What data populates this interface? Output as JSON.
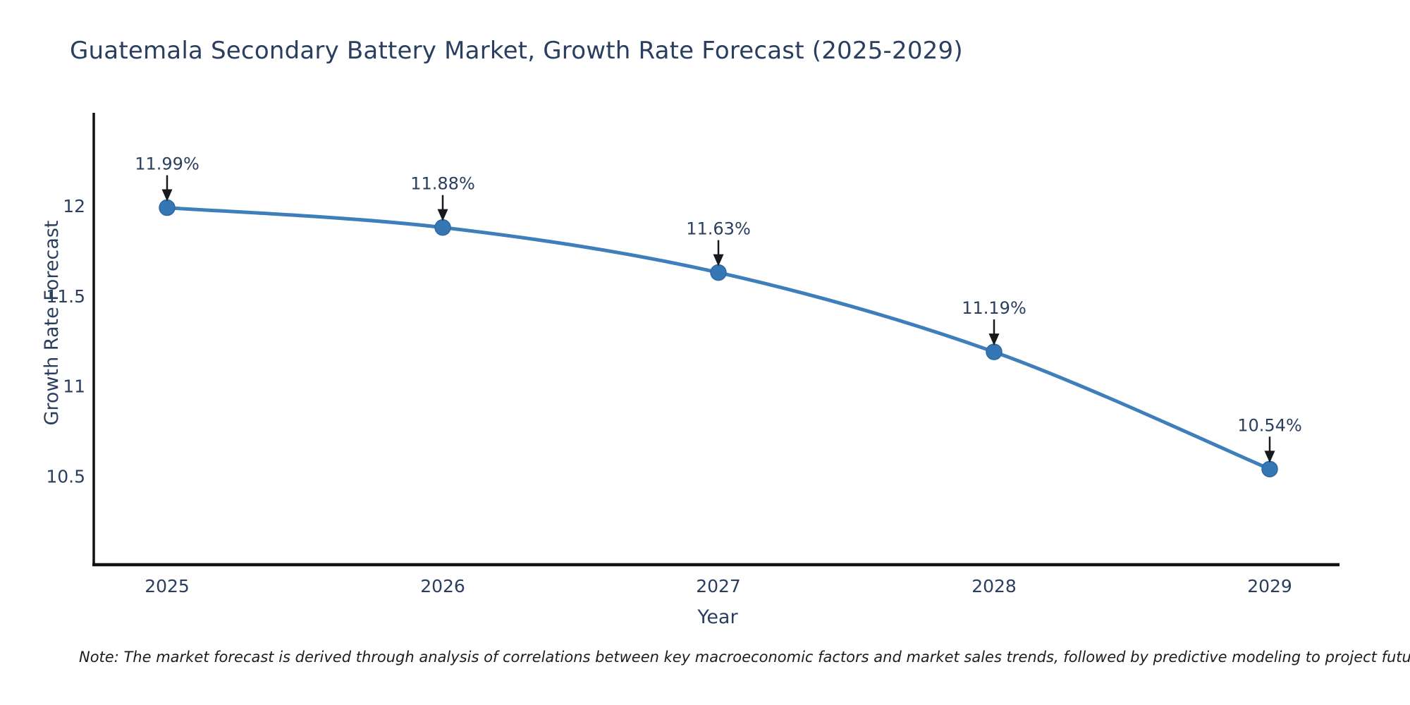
{
  "title": {
    "text": "Guatemala Secondary Battery Market, Growth Rate Forecast (2025-2029)"
  },
  "note": {
    "text": "Note: The market forecast is derived through analysis of correlations between key macroeconomic factors and market sales trends, followed by predictive modeling to project future sal"
  },
  "colors": {
    "background": "#ffffff",
    "title_text": "#2a3f5f",
    "axis_text": "#2a3f5f",
    "tick_text": "#2a3f5f",
    "annotation_text": "#2a3f5f",
    "line": "#3e7fbb",
    "marker": "#3577b4",
    "marker_edge": "#2d68a0",
    "axis_line": "#111111",
    "arrow": "#16191d",
    "note_text": "#1d1d1b"
  },
  "chart_data": {
    "type": "line",
    "title": "Guatemala Secondary Battery Market, Growth Rate Forecast (2025-2029)",
    "xlabel": "Year",
    "ylabel": "Growth Rate Forecast",
    "x": [
      2025,
      2026,
      2027,
      2028,
      2029
    ],
    "series": [
      {
        "name": "Growth Rate Forecast",
        "values": [
          11.99,
          11.88,
          11.63,
          11.19,
          10.54
        ]
      }
    ],
    "point_labels": [
      "11.99%",
      "11.88%",
      "11.63%",
      "11.19%",
      "10.54%"
    ],
    "xtick_labels": [
      "2025",
      "2026",
      "2027",
      "2028",
      "2029"
    ],
    "ytick_values": [
      12,
      11.5,
      11,
      10.5
    ],
    "ytick_labels": [
      "12",
      "11.5",
      "11",
      "10.5"
    ],
    "xlim": [
      2024.73,
      2029.25
    ],
    "ylim": [
      10.0,
      12.52
    ],
    "line_shape": "spline",
    "grid": false,
    "legend_position": "none",
    "annotation_style": "black arrow pointing down from label to each data point"
  }
}
